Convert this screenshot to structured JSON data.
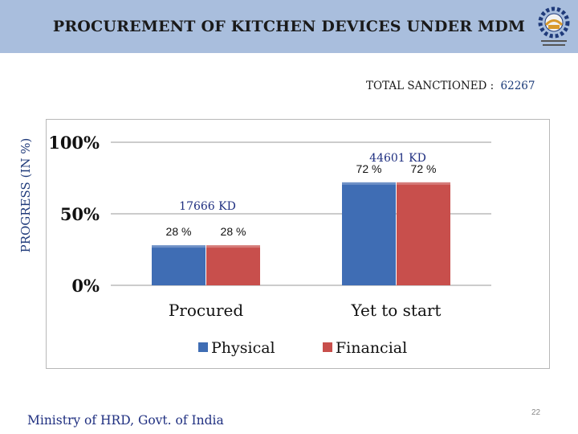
{
  "slide": {
    "title": "PROCUREMENT OF KITCHEN DEVICES UNDER MDM",
    "total_label": "TOTAL SANCTIONED :",
    "total_value": "62267",
    "footer": "Ministry of HRD, Govt. of India",
    "page_number": "22"
  },
  "colors": {
    "header_bg": "#a9bedd",
    "physical": "#3f6db4",
    "financial": "#c84f4c"
  },
  "chart_data": {
    "type": "bar",
    "categories": [
      "Procured",
      "Yet to start"
    ],
    "series": [
      {
        "name": "Physical",
        "values": [
          28,
          72
        ]
      },
      {
        "name": "Financial",
        "values": [
          28,
          72
        ]
      }
    ],
    "ylabel": "PROGRESS (IN %)",
    "xlabel": "",
    "ylim": [
      0,
      100
    ],
    "yticks": [
      "0%",
      "50%",
      "100%"
    ],
    "ytick_values": [
      0,
      50,
      100
    ],
    "category_annotations": [
      "17666 KD",
      "44601 KD"
    ],
    "data_labels": [
      [
        "28 %",
        "28 %"
      ],
      [
        "72 %",
        "72 %"
      ]
    ],
    "grid": true,
    "legend": "bottom"
  }
}
